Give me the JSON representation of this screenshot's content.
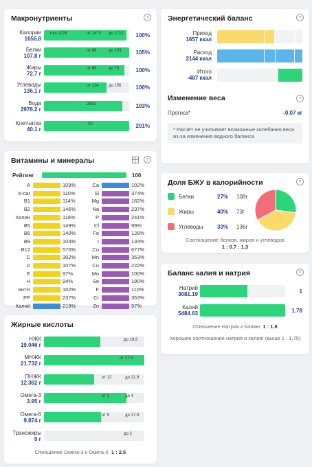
{
  "macros": {
    "title": "Макронутриенты",
    "rows": [
      {
        "name": "Калории",
        "value": "1656.8",
        "marks": [
          "min 1228",
          "от 1470",
          "до 1712"
        ],
        "pct": "100%",
        "fill": 0.97
      },
      {
        "name": "Белки",
        "value": "107.8 г",
        "marks": [
          "от 88",
          "до 103"
        ],
        "pct": "105%",
        "fill": 1.0
      },
      {
        "name": "Жиры",
        "value": "72.7 г",
        "marks": [
          "от 65",
          "до 75"
        ],
        "pct": "100%",
        "fill": 0.94
      },
      {
        "name": "Углеводы",
        "value": "136.1 г",
        "marks": [
          "от 134",
          "до 156"
        ],
        "pct": "100%",
        "fill": 0.73
      },
      {
        "name": "Вода",
        "value": "2976.2 г",
        "marks": [
          "2893"
        ],
        "pct": "103%",
        "fill": 0.92
      },
      {
        "name": "Клетчатка",
        "value": "40.1 г",
        "marks": [
          "20"
        ],
        "pct": "201%",
        "fill": 1.0
      }
    ]
  },
  "energy": {
    "title": "Энергетический баланс",
    "rows": [
      {
        "name": "Приход",
        "value": "1657 ккал",
        "color": "#fbd96b",
        "fill": 0.67
      },
      {
        "name": "Расход",
        "value": "2144 ккал",
        "color": "#5ab6ea",
        "fill": 1.0
      },
      {
        "name": "Итого",
        "value": "-487 ккал",
        "color": "#2ed47a",
        "fill": 0.2
      }
    ]
  },
  "weight": {
    "title": "Изменение веса",
    "forecast_label": "Прогноз*",
    "forecast_value": "-0.07 кг",
    "note": "* Расчёт не учитывает возможные колебания веса из-за изменения водного баланса"
  },
  "vitamins": {
    "title": "Витамины и минералы",
    "rating_label": "Рейтинг",
    "rating_value": "100",
    "left": [
      {
        "name": "A",
        "value": "109%",
        "color": "#f2d21b"
      },
      {
        "name": "b-car",
        "value": "110%",
        "color": "#f2d21b"
      },
      {
        "name": "B1",
        "value": "114%",
        "color": "#f2d21b"
      },
      {
        "name": "B2",
        "value": "146%",
        "color": "#f2d21b"
      },
      {
        "name": "Холин",
        "value": "118%",
        "color": "#f2d21b"
      },
      {
        "name": "B5",
        "value": "149%",
        "color": "#f2d21b"
      },
      {
        "name": "B6",
        "value": "140%",
        "color": "#f2d21b"
      },
      {
        "name": "B9",
        "value": "104%",
        "color": "#f2d21b"
      },
      {
        "name": "B12",
        "value": "570%",
        "color": "#f2d21b"
      },
      {
        "name": "C",
        "value": "302%",
        "color": "#f2d21b"
      },
      {
        "name": "D",
        "value": "107%",
        "color": "#f2d21b"
      },
      {
        "name": "E",
        "value": "97%",
        "color": "#f2d21b"
      },
      {
        "name": "H",
        "value": "94%",
        "color": "#f2d21b"
      },
      {
        "name": "вит.К",
        "value": "102%",
        "color": "#f2d21b"
      },
      {
        "name": "PP",
        "value": "237%",
        "color": "#f2d21b"
      },
      {
        "name": "Калий",
        "value": "219%",
        "color": "#3b8fd9"
      }
    ],
    "right": [
      {
        "name": "Ca",
        "value": "102%",
        "color": "#3b8fd9"
      },
      {
        "name": "Si",
        "value": "374%",
        "color": "#9b59b6"
      },
      {
        "name": "Mg",
        "value": "162%",
        "color": "#9b59b6"
      },
      {
        "name": "Na",
        "value": "237%",
        "color": "#9b59b6"
      },
      {
        "name": "P",
        "value": "241%",
        "color": "#9b59b6"
      },
      {
        "name": "Cl",
        "value": "99%",
        "color": "#9b59b6"
      },
      {
        "name": "Fe",
        "value": "128%",
        "color": "#9b59b6"
      },
      {
        "name": "I",
        "value": "134%",
        "color": "#9b59b6"
      },
      {
        "name": "Co",
        "value": "677%",
        "color": "#9b59b6"
      },
      {
        "name": "Mn",
        "value": "353%",
        "color": "#9b59b6"
      },
      {
        "name": "Cu",
        "value": "222%",
        "color": "#9b59b6"
      },
      {
        "name": "Mo",
        "value": "100%",
        "color": "#9b59b6"
      },
      {
        "name": "Se",
        "value": "190%",
        "color": "#9b59b6"
      },
      {
        "name": "F",
        "value": "110%",
        "color": "#9b59b6"
      },
      {
        "name": "Cr",
        "value": "353%",
        "color": "#9b59b6"
      },
      {
        "name": "Zn",
        "value": "97%",
        "color": "#9b59b6"
      }
    ]
  },
  "bju": {
    "title": "Доля БЖУ в калорийности",
    "rows": [
      {
        "name": "Белки",
        "pct": "27%",
        "grams": "108г",
        "color": "#2ed47a"
      },
      {
        "name": "Жиры",
        "pct": "40%",
        "grams": "73г",
        "color": "#fbd96b"
      },
      {
        "name": "Углеводы",
        "pct": "33%",
        "grams": "136г",
        "color": "#f26d78"
      }
    ],
    "ratio_label": "Соотношение белков, жиров и углеводов",
    "ratio_value": "1 : 0.7 : 1.3"
  },
  "chart_data": {
    "type": "pie",
    "categories": [
      "Белки",
      "Жиры",
      "Углеводы"
    ],
    "values": [
      27,
      40,
      33
    ],
    "colors": [
      "#2ed47a",
      "#fbd96b",
      "#f26d78"
    ]
  },
  "fatty": {
    "title": "Жирные кислоты",
    "rows": [
      {
        "name": "НЖК",
        "value": "19.046 г",
        "marks": [
          "до 19.9"
        ],
        "fill": 0.56
      },
      {
        "name": "МНЖК",
        "value": "21.732 г",
        "marks": [
          "от 17.9"
        ],
        "fill": 1.0
      },
      {
        "name": "ПНЖК",
        "value": "12.362 г",
        "marks": [
          "от 12",
          "до 21.9"
        ],
        "fill": 0.5
      },
      {
        "name": "Омега-3",
        "value": "3.95 г",
        "marks": [
          "от 1",
          "до 4"
        ],
        "fill": 0.82
      },
      {
        "name": "Омега-6",
        "value": "9.874 г",
        "marks": [
          "от 5",
          "до 17.9"
        ],
        "fill": 0.57
      },
      {
        "name": "Трансжиры",
        "value": "0 г",
        "marks": [
          "до 2"
        ],
        "fill": 0.0
      }
    ],
    "ratio_label": "Отношение Омега-3 к Омега-6",
    "ratio_value": "1 : 2.5"
  },
  "kna": {
    "title": "Баланс калия и натрия",
    "rows": [
      {
        "name": "Натрий",
        "value": "3081.19",
        "extra": "1",
        "fill": 0.56
      },
      {
        "name": "Калий",
        "value": "5484.63",
        "extra": "1.78",
        "fill": 1.0
      }
    ],
    "ratio_label": "Отношение Натрия к Калию",
    "ratio_value": "1 : 1.8",
    "note": "Хорошее соотношение натрия и калия! (выше 1 : 1,75)"
  },
  "help_symbol": "?"
}
